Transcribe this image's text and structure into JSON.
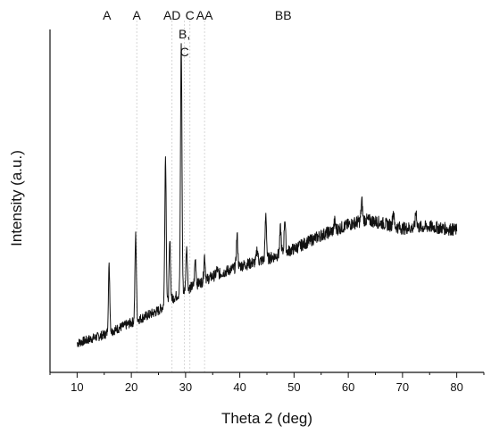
{
  "chart_data": {
    "type": "line",
    "title": "",
    "xlabel": "Theta 2 (deg)",
    "ylabel": "Intensity (a.u.)",
    "xlim": [
      5,
      85
    ],
    "ylim": [
      0,
      100
    ],
    "xticks": [
      10,
      20,
      30,
      40,
      50,
      60,
      70,
      80
    ],
    "yticks_shown": false,
    "grid": false,
    "legend": "none",
    "line_color": "#111111",
    "marker_color": "#cccccc",
    "phase_markers": [
      {
        "label": "A",
        "x": 15.5,
        "line": false
      },
      {
        "label": "A",
        "x": 21.0,
        "line": true
      },
      {
        "label": "AD",
        "x": 27.5,
        "line": true
      },
      {
        "label": "C",
        "x": 30.8,
        "line": true
      },
      {
        "label": "AA",
        "x": 33.5,
        "line": true
      },
      {
        "label": "B,",
        "x": 29.8,
        "line": true
      },
      {
        "label": "C",
        "x": 29.8,
        "line": false
      },
      {
        "label": "BB",
        "x": 48.0,
        "line": false
      }
    ],
    "series": [
      {
        "baseline": [
          [
            10,
            8.5
          ],
          [
            15,
            11
          ],
          [
            20,
            14.5
          ],
          [
            25,
            18
          ],
          [
            28,
            22
          ],
          [
            30,
            24
          ],
          [
            35,
            28
          ],
          [
            40,
            31
          ],
          [
            45,
            33
          ],
          [
            50,
            36
          ],
          [
            55,
            40
          ],
          [
            60,
            43
          ],
          [
            63,
            44.5
          ],
          [
            65,
            44
          ],
          [
            70,
            42
          ],
          [
            75,
            42.5
          ],
          [
            80,
            41.5
          ]
        ],
        "peaks": [
          [
            15.9,
            31
          ],
          [
            20.8,
            40
          ],
          [
            26.3,
            63
          ],
          [
            27.1,
            38
          ],
          [
            29.2,
            96
          ],
          [
            30.2,
            37
          ],
          [
            31.8,
            33
          ],
          [
            33.5,
            34
          ],
          [
            35.8,
            30
          ],
          [
            39.5,
            40
          ],
          [
            43.2,
            36
          ],
          [
            44.8,
            46
          ],
          [
            47.5,
            42
          ],
          [
            48.3,
            45
          ],
          [
            57.5,
            44
          ],
          [
            62.5,
            50
          ],
          [
            68.3,
            47
          ],
          [
            72.5,
            47
          ]
        ]
      }
    ]
  }
}
